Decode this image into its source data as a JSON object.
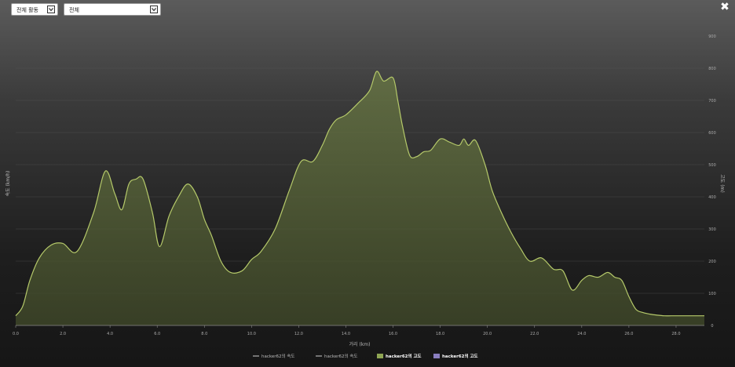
{
  "controls": {
    "activity_filter": "전체 활동",
    "scope_filter": "전체"
  },
  "chart_data": {
    "type": "area",
    "xlabel": "거리 (km)",
    "ylabel_left": "속도 (km/h)",
    "ylabel_right": "고도 (m)",
    "xlim": [
      0,
      29.2
    ],
    "ylim_right": [
      0,
      900
    ],
    "x_ticks": [
      "0.0",
      "2.0",
      "4.0",
      "6.0",
      "8.0",
      "10.0",
      "12.0",
      "14.0",
      "16.0",
      "18.0",
      "20.0",
      "22.0",
      "24.0",
      "26.0",
      "28.0"
    ],
    "y_ticks_right": [
      "0",
      "100",
      "200",
      "300",
      "400",
      "500",
      "600",
      "700",
      "800",
      "900"
    ],
    "grid": true,
    "legend_position": "bottom-center",
    "legend": [
      {
        "label": "hacker62의 속도",
        "color": "#cfcfcf",
        "kind": "line"
      },
      {
        "label": "hacker62의 속도",
        "color": "#cfcfcf",
        "kind": "line"
      },
      {
        "label": "hacker62의 고도",
        "color": "#8fa654",
        "kind": "box",
        "active": true
      },
      {
        "label": "hacker62의 고도",
        "color": "#8a7fc0",
        "kind": "box",
        "active": true
      }
    ],
    "series": [
      {
        "name": "hacker62의 고도",
        "color": "#b5c96a",
        "fill": "#5d6a3c",
        "x": [
          0.0,
          0.3,
          0.6,
          1.0,
          1.5,
          2.0,
          2.6,
          3.3,
          3.8,
          4.2,
          4.5,
          4.8,
          5.1,
          5.4,
          5.8,
          6.1,
          6.5,
          6.9,
          7.3,
          7.7,
          8.0,
          8.3,
          8.7,
          9.1,
          9.6,
          10.0,
          10.4,
          11.0,
          11.6,
          12.1,
          12.6,
          13.0,
          13.3,
          13.6,
          14.0,
          14.5,
          15.0,
          15.3,
          15.6,
          16.0,
          16.2,
          16.4,
          16.7,
          17.0,
          17.3,
          17.6,
          18.0,
          18.4,
          18.8,
          19.0,
          19.2,
          19.5,
          19.9,
          20.2,
          20.6,
          21.0,
          21.4,
          21.8,
          22.3,
          22.8,
          23.2,
          23.6,
          24.0,
          24.3,
          24.7,
          25.1,
          25.4,
          25.7,
          26.0,
          26.3,
          26.6,
          26.9,
          27.2,
          27.5,
          27.8,
          28.2,
          28.6,
          29.2
        ],
        "values": [
          30,
          60,
          140,
          210,
          250,
          255,
          230,
          350,
          480,
          410,
          360,
          440,
          455,
          455,
          350,
          245,
          340,
          400,
          440,
          400,
          330,
          280,
          200,
          165,
          170,
          205,
          230,
          300,
          420,
          510,
          510,
          560,
          610,
          640,
          655,
          690,
          730,
          790,
          760,
          770,
          700,
          620,
          530,
          525,
          540,
          545,
          580,
          570,
          560,
          580,
          560,
          575,
          500,
          420,
          350,
          290,
          240,
          200,
          210,
          175,
          170,
          110,
          140,
          155,
          150,
          165,
          150,
          140,
          90,
          50,
          40,
          35,
          32,
          30,
          30,
          30,
          30,
          30
        ]
      }
    ]
  }
}
